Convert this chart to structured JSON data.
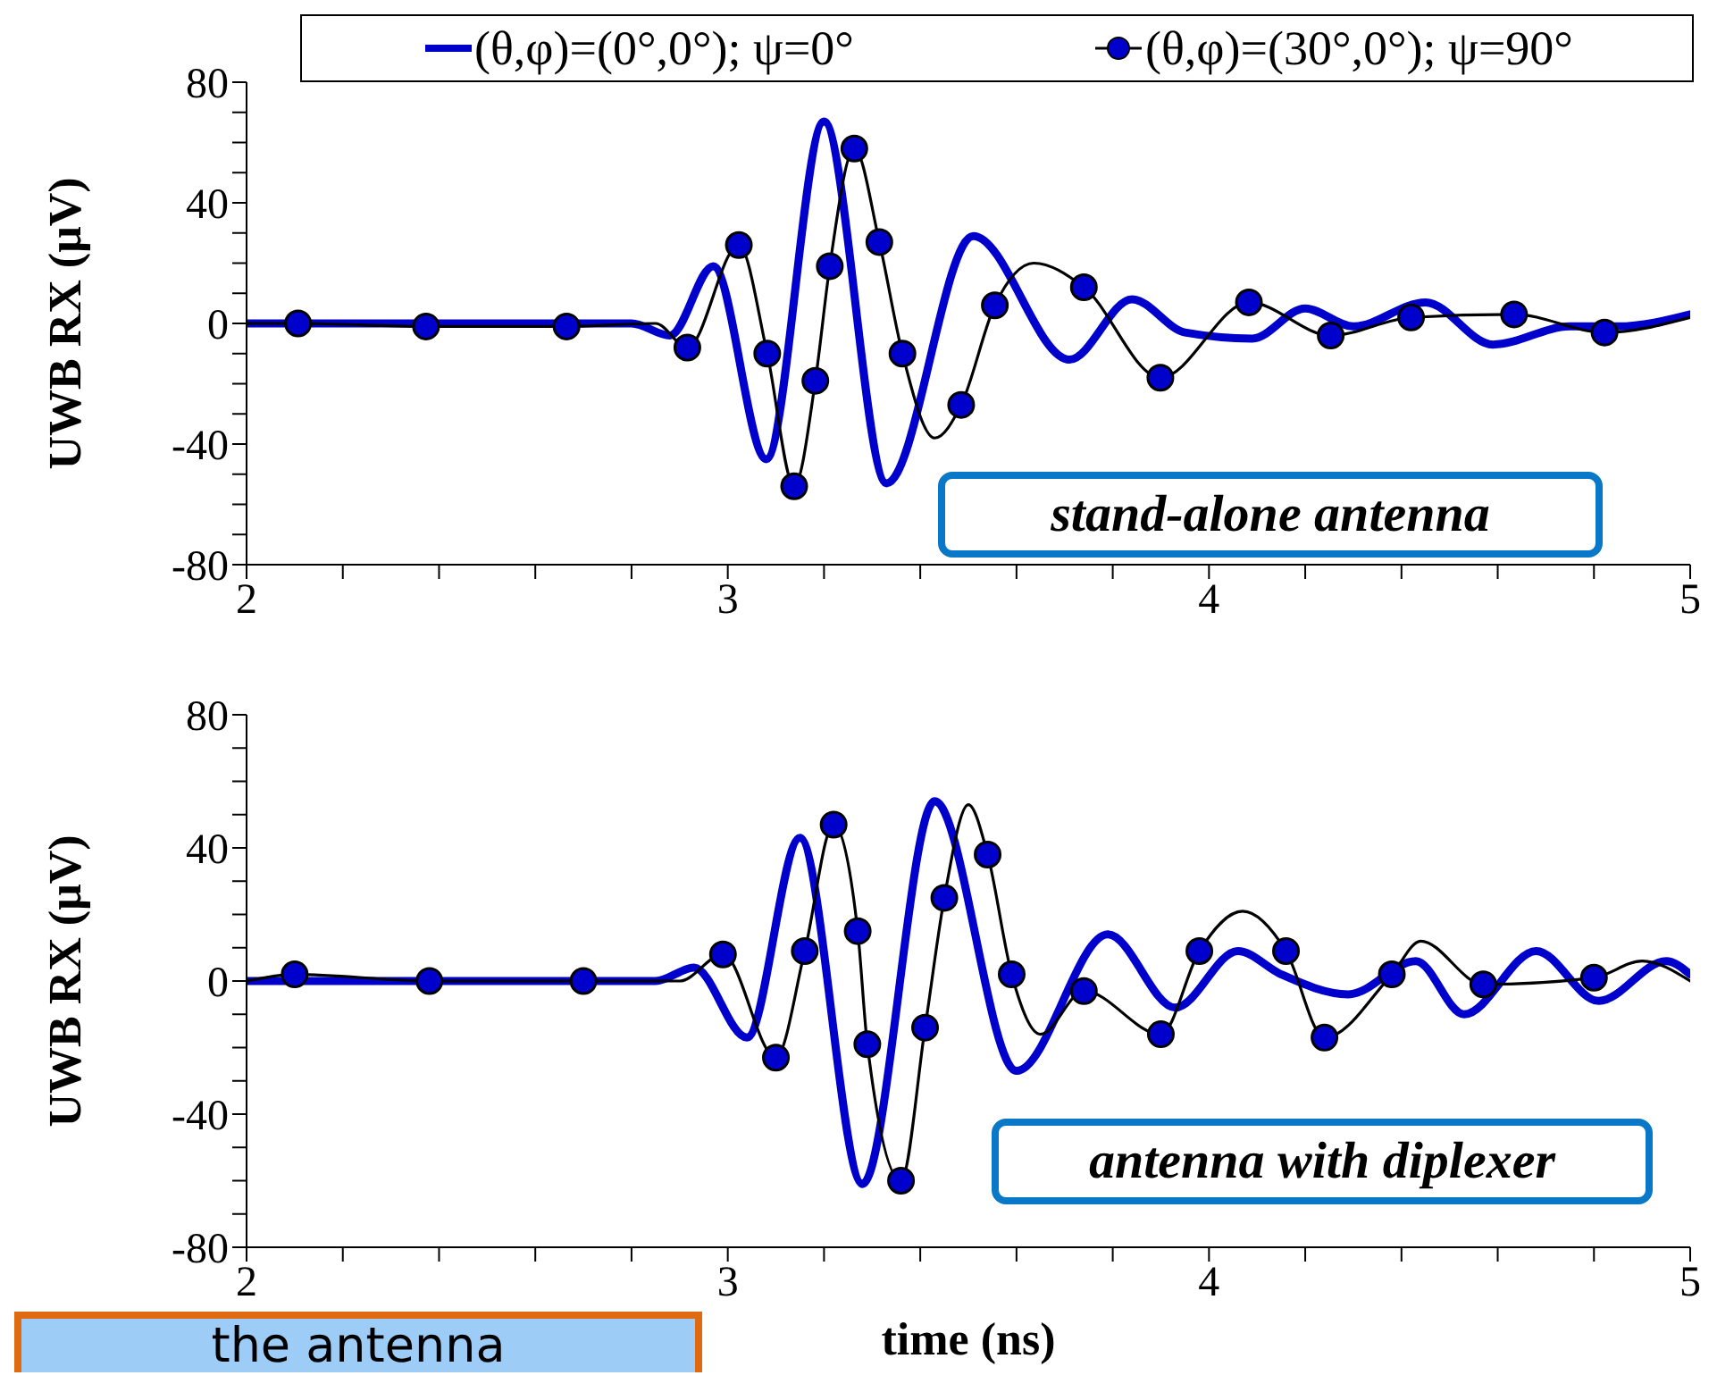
{
  "chart_data": [
    {
      "type": "line",
      "ylabel": "UWB RX (μV)",
      "legend": "top",
      "xlim": [
        2,
        5
      ],
      "ylim": [
        -80,
        80
      ],
      "xticks": [
        2,
        {
          "value": 2.2,
          "label": null
        },
        {
          "value": 2.4,
          "label": null
        },
        {
          "value": 2.6,
          "label": null
        },
        {
          "value": 2.8,
          "label": null
        },
        3,
        {
          "value": 3.2,
          "label": null
        },
        {
          "value": 3.4,
          "label": null
        },
        {
          "value": 3.6,
          "label": null
        },
        {
          "value": 3.8,
          "label": null
        },
        4,
        {
          "value": 4.2,
          "label": null
        },
        {
          "value": 4.4,
          "label": null
        },
        {
          "value": 4.6,
          "label": null
        },
        {
          "value": 4.8,
          "label": null
        },
        5
      ],
      "yticks": [
        -80,
        {
          "value": -70,
          "label": null
        },
        {
          "value": -60,
          "label": null
        },
        {
          "value": -50,
          "label": null
        },
        -40,
        {
          "value": -30,
          "label": null
        },
        {
          "value": -20,
          "label": null
        },
        {
          "value": -10,
          "label": null
        },
        0,
        {
          "value": 10,
          "label": null
        },
        {
          "value": 20,
          "label": null
        },
        {
          "value": 30,
          "label": null
        },
        40,
        {
          "value": 50,
          "label": null
        },
        {
          "value": 60,
          "label": null
        },
        {
          "value": 70,
          "label": null
        },
        80
      ],
      "annotations": [
        "stand-alone antenna"
      ],
      "series": [
        {
          "name": "(θ,φ)=(0°,0°); ψ=0°",
          "color": "#0000cc",
          "marker": "none",
          "x": [
            2,
            2.5,
            2.8,
            2.88,
            2.97,
            3.08,
            3.2,
            3.33,
            3.51,
            3.71,
            3.84,
            3.95,
            4.09,
            4.2,
            4.3,
            4.45,
            4.59,
            4.75,
            4.85,
            5
          ],
          "values": [
            0,
            0,
            0,
            -4,
            19,
            -45,
            67,
            -53,
            29,
            -12,
            8,
            -3,
            -5,
            5,
            -1,
            7,
            -7,
            -1,
            -1,
            3
          ]
        },
        {
          "name": "(θ,φ)=(30°,0°); ψ=90°",
          "color": "#000000",
          "marker": "circle",
          "x": [
            2,
            2.107,
            2.373,
            2.665,
            2.85,
            2.916,
            3.023,
            3.082,
            3.138,
            3.182,
            3.212,
            3.263,
            3.315,
            3.363,
            3.43,
            3.485,
            3.555,
            3.636,
            3.74,
            3.899,
            4.083,
            4.253,
            4.42,
            4.634,
            4.822,
            5
          ],
          "values": [
            0,
            0,
            -1,
            -1,
            0,
            -8,
            26,
            -10,
            -54,
            -19,
            19,
            58,
            27,
            -10,
            -38,
            -27,
            6,
            20,
            12,
            -18,
            7,
            -4,
            2,
            3,
            -3,
            2
          ],
          "colors": [
            null,
            "#0000cc",
            "#0000cc",
            "#0000cc",
            null,
            "#0000cc",
            "#0000cc",
            "#0000cc",
            "#0000cc",
            "#0000cc",
            "#0000cc",
            "#0000cc",
            "#0000cc",
            "#0000cc",
            null,
            "#0000cc",
            "#0000cc",
            null,
            "#0000cc",
            "#0000cc",
            "#0000cc",
            "#0000cc",
            "#0000cc",
            "#0000cc",
            "#0000cc",
            null
          ]
        }
      ]
    },
    {
      "type": "line",
      "ylabel": "UWB RX (μV)",
      "xlabel": "time (ns)",
      "xlim": [
        2,
        5
      ],
      "ylim": [
        -80,
        80
      ],
      "xticks": [
        2,
        {
          "value": 2.2,
          "label": null
        },
        {
          "value": 2.4,
          "label": null
        },
        {
          "value": 2.6,
          "label": null
        },
        {
          "value": 2.8,
          "label": null
        },
        3,
        {
          "value": 3.2,
          "label": null
        },
        {
          "value": 3.4,
          "label": null
        },
        {
          "value": 3.6,
          "label": null
        },
        {
          "value": 3.8,
          "label": null
        },
        4,
        {
          "value": 4.2,
          "label": null
        },
        {
          "value": 4.4,
          "label": null
        },
        {
          "value": 4.6,
          "label": null
        },
        {
          "value": 4.8,
          "label": null
        },
        5
      ],
      "yticks": [
        -80,
        {
          "value": -70,
          "label": null
        },
        {
          "value": -60,
          "label": null
        },
        {
          "value": -50,
          "label": null
        },
        -40,
        {
          "value": -30,
          "label": null
        },
        {
          "value": -20,
          "label": null
        },
        {
          "value": -10,
          "label": null
        },
        0,
        {
          "value": 10,
          "label": null
        },
        {
          "value": 20,
          "label": null
        },
        {
          "value": 30,
          "label": null
        },
        40,
        {
          "value": 50,
          "label": null
        },
        {
          "value": 60,
          "label": null
        },
        {
          "value": 70,
          "label": null
        },
        80
      ],
      "annotations": [
        "antenna with diplexer",
        "the antenna"
      ],
      "series": [
        {
          "color": "#0000cc",
          "marker": "none",
          "x": [
            2,
            2.5,
            2.85,
            2.93,
            3.04,
            3.15,
            3.28,
            3.43,
            3.6,
            3.79,
            3.93,
            4.06,
            4.15,
            4.29,
            4.43,
            4.53,
            4.68,
            4.81,
            4.95,
            5
          ],
          "values": [
            0,
            0,
            0,
            4,
            -17,
            43,
            -61,
            54,
            -27,
            14,
            -8,
            9,
            2,
            -4,
            6,
            -10,
            9,
            -6,
            6,
            2
          ]
        },
        {
          "color": "#000000",
          "marker": "circle",
          "x": [
            2,
            2.1,
            2.38,
            2.7,
            2.9,
            2.99,
            3.1,
            3.16,
            3.22,
            3.27,
            3.29,
            3.36,
            3.41,
            3.45,
            3.5,
            3.54,
            3.59,
            3.65,
            3.74,
            3.9,
            3.98,
            4.07,
            4.16,
            4.24,
            4.38,
            4.44,
            4.57,
            4.8,
            4.9,
            5
          ],
          "values": [
            0,
            2,
            0,
            0,
            0,
            8,
            -23,
            9,
            47,
            15,
            -19,
            -60,
            -14,
            25,
            53,
            38,
            2,
            -16,
            -3,
            -16,
            9,
            21,
            9,
            -17,
            2,
            12,
            -1,
            1,
            6,
            0
          ],
          "colors": [
            null,
            "#0000cc",
            "#0000cc",
            "#0000cc",
            null,
            "#0000cc",
            "#0000cc",
            "#0000cc",
            "#0000cc",
            "#0000cc",
            "#0000cc",
            "#0000cc",
            "#0000cc",
            "#0000cc",
            null,
            "#0000cc",
            "#0000cc",
            null,
            "#0000cc",
            "#0000cc",
            "#0000cc",
            null,
            "#0000cc",
            "#0000cc",
            "#0000cc",
            null,
            "#0000cc",
            "#0000cc",
            null,
            null
          ]
        }
      ]
    }
  ]
}
